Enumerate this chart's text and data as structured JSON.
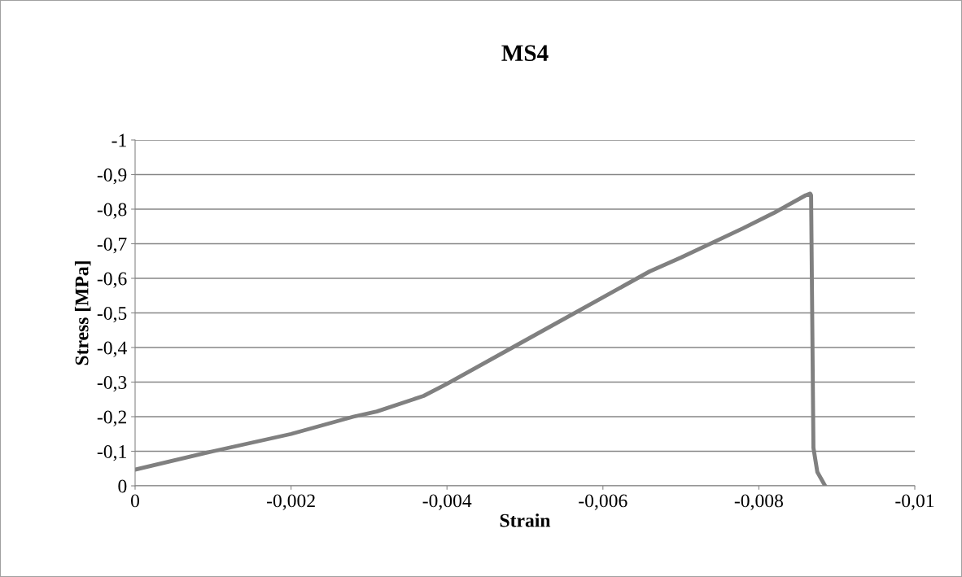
{
  "chart_data": {
    "type": "line",
    "title": "MS4",
    "xlabel": "Strain",
    "ylabel": "Stress [MPa]",
    "x": [
      0,
      -0.001,
      -0.002,
      -0.0028,
      -0.0031,
      -0.0037,
      -0.004,
      -0.005,
      -0.006,
      -0.0066,
      -0.007,
      -0.0078,
      -0.0082,
      -0.0086,
      -0.00866,
      -0.00867,
      -0.0087,
      -0.00875,
      -0.00885
    ],
    "series": [
      {
        "color": "#808080",
        "values": [
          -0.047,
          -0.1,
          -0.15,
          -0.2,
          -0.215,
          -0.26,
          -0.295,
          -0.42,
          -0.545,
          -0.62,
          -0.66,
          -0.745,
          -0.79,
          -0.84,
          -0.845,
          -0.84,
          -0.11,
          -0.04,
          0
        ]
      }
    ],
    "xlim": [
      0,
      -0.01
    ],
    "ylim": [
      0,
      -1
    ],
    "xticks": [
      0,
      {
        "value": -0.002,
        "label": "-0,002"
      },
      {
        "value": -0.004,
        "label": "-0,004"
      },
      {
        "value": -0.006,
        "label": "-0,006"
      },
      {
        "value": -0.008,
        "label": "-0,008"
      },
      {
        "value": -0.01,
        "label": "-0,01"
      }
    ],
    "yticks": [
      0,
      {
        "value": -0.1,
        "label": "-0,1"
      },
      {
        "value": -0.2,
        "label": "-0,2"
      },
      {
        "value": -0.3,
        "label": "-0,3"
      },
      {
        "value": -0.4,
        "label": "-0,4"
      },
      {
        "value": -0.5,
        "label": "-0,5"
      },
      {
        "value": -0.6,
        "label": "-0,6"
      },
      {
        "value": -0.7,
        "label": "-0,7"
      },
      {
        "value": -0.8,
        "label": "-0,8"
      },
      {
        "value": -0.9,
        "label": "-0,9"
      },
      -1
    ],
    "grid": "y",
    "marker": "none",
    "line_style": "solid"
  }
}
